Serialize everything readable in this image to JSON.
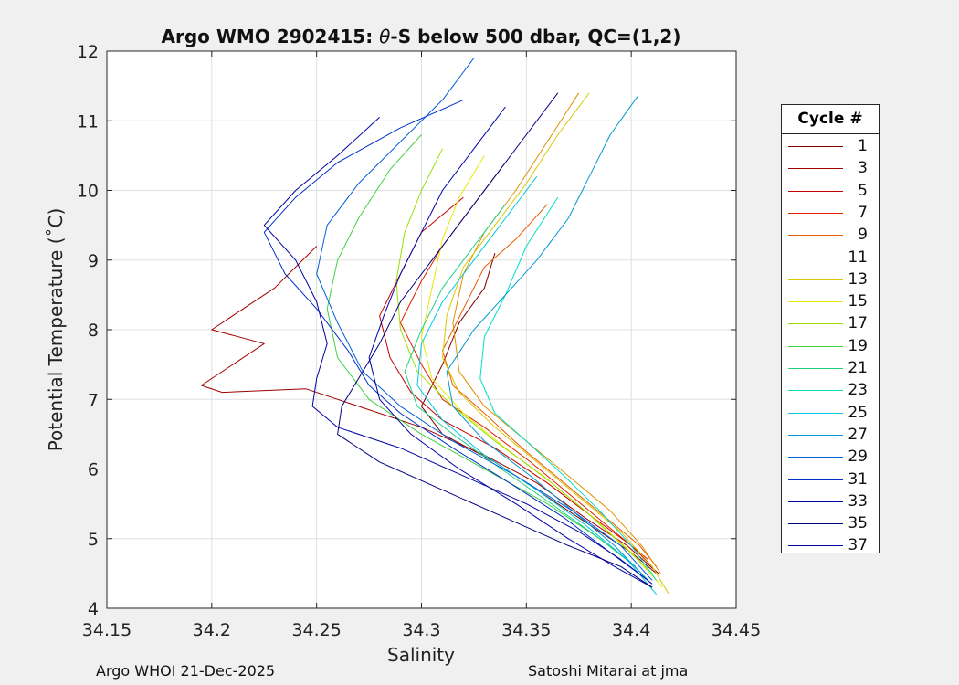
{
  "chart_data": {
    "type": "line",
    "title_prefix": "Argo WMO 2902415: ",
    "title_theta": "θ",
    "title_suffix": "-S below 500 dbar,  QC=(1,2)",
    "xlabel": "Salinity",
    "ylabel": "Potential Temperature (˚C)",
    "xlim": [
      34.15,
      34.45
    ],
    "ylim": [
      4,
      12
    ],
    "xticks": [
      34.15,
      34.2,
      34.25,
      34.3,
      34.35,
      34.4,
      34.45
    ],
    "xtick_labels": [
      "34.15",
      "34.2",
      "34.25",
      "34.3",
      "34.35",
      "34.4",
      "34.45"
    ],
    "yticks": [
      4,
      5,
      6,
      7,
      8,
      9,
      10,
      11,
      12
    ],
    "ytick_labels": [
      "4",
      "5",
      "6",
      "7",
      "8",
      "9",
      "10",
      "11",
      "12"
    ],
    "grid": true,
    "legend_title": "Cycle #",
    "legend_position": "outside-right",
    "series": [
      {
        "name": "1",
        "color": "#7f0000",
        "points": [
          [
            34.335,
            9.1
          ],
          [
            34.33,
            8.6
          ],
          [
            34.318,
            8.1
          ],
          [
            34.31,
            7.5
          ],
          [
            34.3,
            6.9
          ],
          [
            34.31,
            6.5
          ],
          [
            34.335,
            6.1
          ],
          [
            34.36,
            5.6
          ],
          [
            34.38,
            5.2
          ],
          [
            34.4,
            4.8
          ],
          [
            34.412,
            4.5
          ]
        ]
      },
      {
        "name": "3",
        "color": "#a00000",
        "points": [
          [
            34.25,
            9.2
          ],
          [
            34.23,
            8.6
          ],
          [
            34.2,
            8.0
          ],
          [
            34.225,
            7.8
          ],
          [
            34.195,
            7.2
          ],
          [
            34.205,
            7.1
          ],
          [
            34.245,
            7.15
          ],
          [
            34.27,
            6.9
          ],
          [
            34.3,
            6.6
          ],
          [
            34.33,
            6.2
          ],
          [
            34.355,
            5.8
          ],
          [
            34.378,
            5.3
          ],
          [
            34.398,
            4.9
          ],
          [
            34.413,
            4.5
          ]
        ]
      },
      {
        "name": "5",
        "color": "#c40000",
        "points": [
          [
            34.32,
            9.9
          ],
          [
            34.3,
            9.4
          ],
          [
            34.29,
            8.8
          ],
          [
            34.28,
            8.2
          ],
          [
            34.285,
            7.6
          ],
          [
            34.295,
            7.1
          ],
          [
            34.31,
            6.7
          ],
          [
            34.335,
            6.3
          ],
          [
            34.36,
            5.8
          ],
          [
            34.382,
            5.3
          ],
          [
            34.4,
            4.9
          ],
          [
            34.41,
            4.6
          ]
        ]
      },
      {
        "name": "7",
        "color": "#e02000",
        "points": [
          [
            34.34,
            10.4
          ],
          [
            34.325,
            9.8
          ],
          [
            34.31,
            9.2
          ],
          [
            34.3,
            8.7
          ],
          [
            34.29,
            8.1
          ],
          [
            34.3,
            7.5
          ],
          [
            34.31,
            7.0
          ],
          [
            34.33,
            6.6
          ],
          [
            34.352,
            6.1
          ],
          [
            34.372,
            5.6
          ],
          [
            34.392,
            5.1
          ],
          [
            34.408,
            4.7
          ]
        ]
      },
      {
        "name": "9",
        "color": "#e65c00",
        "points": [
          [
            34.36,
            9.8
          ],
          [
            34.345,
            9.3
          ],
          [
            34.33,
            8.9
          ],
          [
            34.32,
            8.3
          ],
          [
            34.31,
            7.7
          ],
          [
            34.315,
            7.2
          ],
          [
            34.33,
            6.8
          ],
          [
            34.348,
            6.3
          ],
          [
            34.368,
            5.8
          ],
          [
            34.388,
            5.3
          ],
          [
            34.404,
            4.9
          ],
          [
            34.412,
            4.6
          ]
        ]
      },
      {
        "name": "11",
        "color": "#e09000",
        "points": [
          [
            34.375,
            11.4
          ],
          [
            34.36,
            10.7
          ],
          [
            34.345,
            10.0
          ],
          [
            34.33,
            9.4
          ],
          [
            34.32,
            8.8
          ],
          [
            34.315,
            8.1
          ],
          [
            34.318,
            7.4
          ],
          [
            34.33,
            6.9
          ],
          [
            34.35,
            6.4
          ],
          [
            34.37,
            5.9
          ],
          [
            34.39,
            5.4
          ],
          [
            34.405,
            4.9
          ],
          [
            34.414,
            4.5
          ]
        ]
      },
      {
        "name": "13",
        "color": "#d8c800",
        "points": [
          [
            34.38,
            11.4
          ],
          [
            34.365,
            10.8
          ],
          [
            34.35,
            10.1
          ],
          [
            34.335,
            9.5
          ],
          [
            34.32,
            8.9
          ],
          [
            34.312,
            8.2
          ],
          [
            34.31,
            7.6
          ],
          [
            34.318,
            7.1
          ],
          [
            34.335,
            6.6
          ],
          [
            34.355,
            6.1
          ],
          [
            34.375,
            5.6
          ],
          [
            34.395,
            5.1
          ],
          [
            34.41,
            4.6
          ],
          [
            34.418,
            4.2
          ]
        ]
      },
      {
        "name": "15",
        "color": "#e8e800",
        "points": [
          [
            34.33,
            10.5
          ],
          [
            34.318,
            9.9
          ],
          [
            34.31,
            9.3
          ],
          [
            34.305,
            8.6
          ],
          [
            34.3,
            7.9
          ],
          [
            34.305,
            7.3
          ],
          [
            34.32,
            6.8
          ],
          [
            34.34,
            6.3
          ],
          [
            34.362,
            5.8
          ],
          [
            34.382,
            5.3
          ],
          [
            34.4,
            4.8
          ],
          [
            34.415,
            4.3
          ]
        ]
      },
      {
        "name": "17",
        "color": "#9ae000",
        "points": [
          [
            34.31,
            10.6
          ],
          [
            34.3,
            10.0
          ],
          [
            34.292,
            9.4
          ],
          [
            34.288,
            8.7
          ],
          [
            34.29,
            8.0
          ],
          [
            34.298,
            7.4
          ],
          [
            34.315,
            6.9
          ],
          [
            34.335,
            6.4
          ],
          [
            34.358,
            5.9
          ],
          [
            34.378,
            5.4
          ],
          [
            34.396,
            4.9
          ],
          [
            34.41,
            4.5
          ]
        ]
      },
      {
        "name": "19",
        "color": "#40d040",
        "points": [
          [
            34.3,
            10.8
          ],
          [
            34.285,
            10.3
          ],
          [
            34.27,
            9.6
          ],
          [
            34.26,
            9.0
          ],
          [
            34.255,
            8.3
          ],
          [
            34.26,
            7.6
          ],
          [
            34.275,
            7.0
          ],
          [
            34.3,
            6.5
          ],
          [
            34.33,
            6.0
          ],
          [
            34.36,
            5.5
          ],
          [
            34.385,
            5.0
          ],
          [
            34.402,
            4.6
          ]
        ]
      },
      {
        "name": "21",
        "color": "#20d080",
        "points": [
          [
            34.34,
            9.8
          ],
          [
            34.325,
            9.2
          ],
          [
            34.31,
            8.6
          ],
          [
            34.3,
            8.0
          ],
          [
            34.292,
            7.4
          ],
          [
            34.298,
            6.9
          ],
          [
            34.315,
            6.5
          ],
          [
            34.338,
            6.0
          ],
          [
            34.362,
            5.5
          ],
          [
            34.385,
            5.0
          ],
          [
            34.402,
            4.6
          ]
        ]
      },
      {
        "name": "23",
        "color": "#00e0c0",
        "points": [
          [
            34.365,
            9.9
          ],
          [
            34.35,
            9.2
          ],
          [
            34.34,
            8.5
          ],
          [
            34.33,
            7.9
          ],
          [
            34.328,
            7.3
          ],
          [
            34.335,
            6.8
          ],
          [
            34.35,
            6.4
          ],
          [
            34.368,
            5.9
          ],
          [
            34.385,
            5.4
          ],
          [
            34.4,
            4.9
          ],
          [
            34.412,
            4.4
          ]
        ]
      },
      {
        "name": "25",
        "color": "#00c8e0",
        "points": [
          [
            34.355,
            10.2
          ],
          [
            34.34,
            9.6
          ],
          [
            34.325,
            9.0
          ],
          [
            34.31,
            8.4
          ],
          [
            34.3,
            7.8
          ],
          [
            34.298,
            7.2
          ],
          [
            34.31,
            6.7
          ],
          [
            34.33,
            6.2
          ],
          [
            34.355,
            5.7
          ],
          [
            34.378,
            5.2
          ],
          [
            34.398,
            4.7
          ],
          [
            34.412,
            4.2
          ]
        ]
      },
      {
        "name": "27",
        "color": "#0098d0",
        "points": [
          [
            34.403,
            11.35
          ],
          [
            34.39,
            10.8
          ],
          [
            34.38,
            10.2
          ],
          [
            34.37,
            9.6
          ],
          [
            34.355,
            9.0
          ],
          [
            34.34,
            8.5
          ],
          [
            34.325,
            8.0
          ],
          [
            34.312,
            7.4
          ],
          [
            34.315,
            6.9
          ],
          [
            34.33,
            6.4
          ],
          [
            34.352,
            5.9
          ],
          [
            34.372,
            5.4
          ],
          [
            34.392,
            4.9
          ],
          [
            34.408,
            4.4
          ]
        ]
      },
      {
        "name": "29",
        "color": "#0060d8",
        "points": [
          [
            34.325,
            11.9
          ],
          [
            34.31,
            11.3
          ],
          [
            34.29,
            10.7
          ],
          [
            34.27,
            10.1
          ],
          [
            34.255,
            9.5
          ],
          [
            34.25,
            8.8
          ],
          [
            34.26,
            8.1
          ],
          [
            34.272,
            7.4
          ],
          [
            34.29,
            6.9
          ],
          [
            34.315,
            6.4
          ],
          [
            34.345,
            5.9
          ],
          [
            34.372,
            5.4
          ],
          [
            34.395,
            4.9
          ],
          [
            34.41,
            4.4
          ]
        ]
      },
      {
        "name": "31",
        "color": "#0030c8",
        "points": [
          [
            34.32,
            11.3
          ],
          [
            34.29,
            10.9
          ],
          [
            34.26,
            10.4
          ],
          [
            34.24,
            9.9
          ],
          [
            34.225,
            9.4
          ],
          [
            34.235,
            8.8
          ],
          [
            34.25,
            8.3
          ],
          [
            34.265,
            7.7
          ],
          [
            34.275,
            7.2
          ],
          [
            34.29,
            6.8
          ],
          [
            34.315,
            6.3
          ],
          [
            34.342,
            5.8
          ],
          [
            34.368,
            5.3
          ],
          [
            34.39,
            4.8
          ],
          [
            34.408,
            4.4
          ]
        ]
      },
      {
        "name": "33",
        "color": "#0000a8",
        "points": [
          [
            34.34,
            11.2
          ],
          [
            34.325,
            10.6
          ],
          [
            34.31,
            10.0
          ],
          [
            34.3,
            9.4
          ],
          [
            34.29,
            8.8
          ],
          [
            34.282,
            8.2
          ],
          [
            34.275,
            7.6
          ],
          [
            34.28,
            7.0
          ],
          [
            34.295,
            6.5
          ],
          [
            34.318,
            6.0
          ],
          [
            34.345,
            5.5
          ],
          [
            34.37,
            5.0
          ],
          [
            34.392,
            4.6
          ],
          [
            34.41,
            4.3
          ]
        ]
      },
      {
        "name": "35",
        "color": "#000080",
        "points": [
          [
            34.365,
            11.4
          ],
          [
            34.35,
            10.8
          ],
          [
            34.335,
            10.2
          ],
          [
            34.32,
            9.6
          ],
          [
            34.305,
            9.0
          ],
          [
            34.29,
            8.4
          ],
          [
            34.28,
            7.8
          ],
          [
            34.27,
            7.3
          ],
          [
            34.262,
            6.9
          ],
          [
            34.26,
            6.5
          ],
          [
            34.28,
            6.1
          ],
          [
            34.31,
            5.7
          ],
          [
            34.34,
            5.3
          ],
          [
            34.37,
            4.9
          ],
          [
            34.395,
            4.6
          ],
          [
            34.41,
            4.3
          ]
        ]
      },
      {
        "name": "37",
        "color": "#0000a0",
        "points": [
          [
            34.28,
            11.05
          ],
          [
            34.26,
            10.5
          ],
          [
            34.24,
            10.0
          ],
          [
            34.225,
            9.5
          ],
          [
            34.24,
            9.0
          ],
          [
            34.25,
            8.4
          ],
          [
            34.255,
            7.8
          ],
          [
            34.25,
            7.3
          ],
          [
            34.248,
            6.9
          ],
          [
            34.26,
            6.6
          ],
          [
            34.29,
            6.3
          ],
          [
            34.32,
            5.9
          ],
          [
            34.35,
            5.5
          ],
          [
            34.375,
            5.1
          ],
          [
            34.395,
            4.7
          ],
          [
            34.41,
            4.35
          ]
        ]
      }
    ]
  },
  "footer": {
    "left": "Argo WHOI 21-Dec-2025",
    "right": "Satoshi Mitarai at jma"
  }
}
